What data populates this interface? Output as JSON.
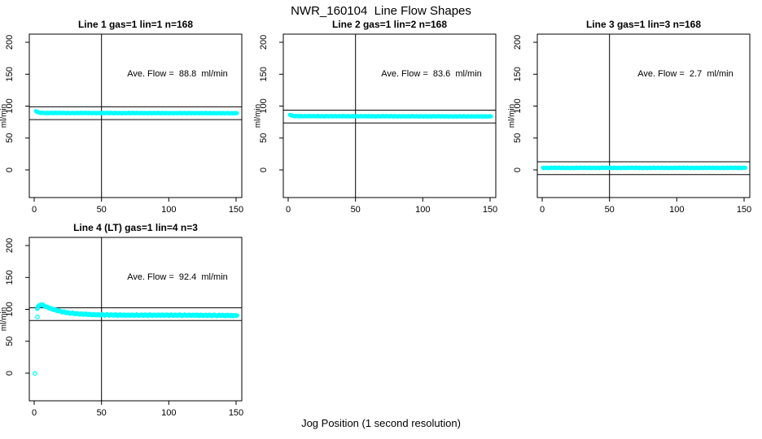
{
  "page": {
    "title": "NWR_160104  Line Flow Shapes",
    "xlabel": "Jog Position (1 second resolution)"
  },
  "colors": {
    "marker": "#00FFFF",
    "axis": "#000000",
    "background": "#FFFFFF"
  },
  "chart_data": [
    {
      "type": "scatter",
      "title": "Line 1 gas=1 lin=1 n=168",
      "annotation": "Ave. Flow =  88.8  ml/min",
      "ave_flow_ml_min": 88.8,
      "n": 168,
      "ylabel": "ml/min",
      "xlim": [
        0,
        150
      ],
      "ylim": [
        0,
        200
      ],
      "xticks": [
        0,
        50,
        100,
        150
      ],
      "yticks": [
        0,
        50,
        100,
        150,
        200
      ],
      "vline_x": 50,
      "hlines": [
        98.8,
        78.8
      ],
      "x_start": 1.2,
      "x_end": 150.8,
      "step": 0.5,
      "jitter": 0.7,
      "band_profile": [
        [
          1.2,
          92.5
        ],
        [
          2,
          91
        ],
        [
          3.5,
          89.7
        ],
        [
          7,
          89.2
        ],
        [
          150.8,
          88.8
        ]
      ],
      "outliers": []
    },
    {
      "type": "scatter",
      "title": "Line 2 gas=1 lin=2 n=168",
      "annotation": "Ave. Flow =  83.6  ml/min",
      "ave_flow_ml_min": 83.6,
      "n": 168,
      "ylabel": "ml/min",
      "xlim": [
        0,
        150
      ],
      "ylim": [
        0,
        200
      ],
      "xticks": [
        0,
        50,
        100,
        150
      ],
      "yticks": [
        0,
        50,
        100,
        150,
        200
      ],
      "vline_x": 50,
      "hlines": [
        93.6,
        73.6
      ],
      "x_start": 1.2,
      "x_end": 150.8,
      "step": 0.5,
      "jitter": 0.7,
      "band_profile": [
        [
          1.2,
          86.5
        ],
        [
          2,
          85.5
        ],
        [
          3.5,
          84.5
        ],
        [
          7,
          84.2
        ],
        [
          150.8,
          83.8
        ]
      ],
      "outliers": []
    },
    {
      "type": "scatter",
      "title": "Line 3 gas=1 lin=3 n=168",
      "annotation": "Ave. Flow =  2.7  ml/min",
      "ave_flow_ml_min": 2.7,
      "n": 168,
      "ylabel": "ml/min",
      "xlim": [
        0,
        150
      ],
      "ylim": [
        0,
        200
      ],
      "xticks": [
        0,
        50,
        100,
        150
      ],
      "yticks": [
        0,
        50,
        100,
        150,
        200
      ],
      "vline_x": 50,
      "hlines": [
        12.7,
        -7.3
      ],
      "x_start": 0.5,
      "x_end": 151,
      "step": 0.5,
      "jitter": 0.7,
      "band_profile": [
        [
          0.5,
          3.2
        ],
        [
          151,
          3.2
        ]
      ],
      "outliers": []
    },
    {
      "type": "scatter",
      "title": "Line 4 (LT) gas=1 lin=4 n=3",
      "annotation": "Ave. Flow =  92.4  ml/min",
      "ave_flow_ml_min": 92.4,
      "n": 3,
      "ylabel": "ml/min",
      "xlim": [
        0,
        150
      ],
      "ylim": [
        0,
        200
      ],
      "xticks": [
        0,
        50,
        100,
        150
      ],
      "yticks": [
        0,
        50,
        100,
        150,
        200
      ],
      "vline_x": 50,
      "hlines": [
        102.4,
        82.4
      ],
      "x_start": 2.4,
      "x_end": 151,
      "step": 0.45,
      "jitter": 1.5,
      "band_profile": [
        [
          2.4,
          102
        ],
        [
          3.5,
          106
        ],
        [
          5,
          107.5
        ],
        [
          7,
          106
        ],
        [
          10,
          103
        ],
        [
          14,
          100
        ],
        [
          19,
          97
        ],
        [
          25,
          94.5
        ],
        [
          33,
          92.8
        ],
        [
          45,
          91.5
        ],
        [
          70,
          90.8
        ],
        [
          110,
          90.8
        ],
        [
          151,
          90.2
        ]
      ],
      "outliers": [
        [
          0.6,
          -0.5
        ],
        [
          2.3,
          101
        ],
        [
          2.4,
          88
        ]
      ]
    }
  ]
}
